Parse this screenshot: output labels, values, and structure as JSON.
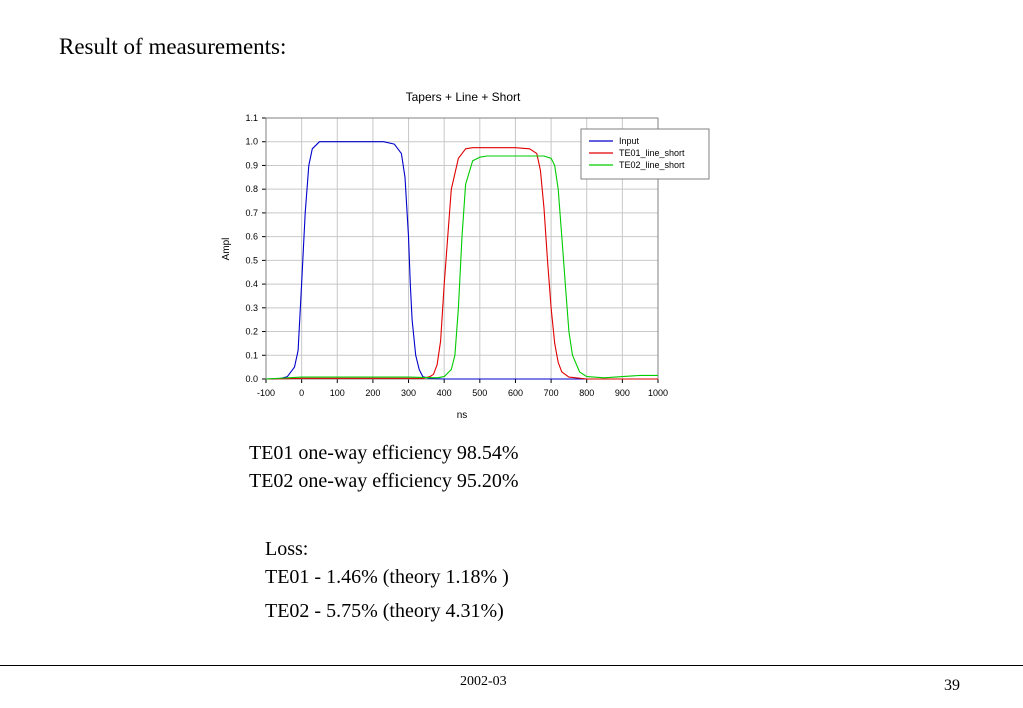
{
  "slide": {
    "title": "Result of measurements:",
    "efficiency": [
      "TE01 one-way efficiency 98.54%",
      "TE02 one-way efficiency 95.20%"
    ],
    "loss": {
      "heading": "Loss:",
      "lines": [
        "TE01 - 1.46% (theory 1.18% )",
        "TE02 - 5.75% (theory 4.31%)"
      ]
    },
    "footer": {
      "date": "2002-03",
      "page": "39"
    }
  },
  "chart_data": {
    "type": "line",
    "title": "Tapers + Line + Short",
    "xlabel": "ns",
    "ylabel": "Ampl",
    "xlim": [
      -100,
      1000
    ],
    "ylim": [
      0,
      1.1
    ],
    "xticks": [
      "-100",
      "0",
      "100",
      "200",
      "300",
      "400",
      "500",
      "600",
      "700",
      "800",
      "900",
      "1000"
    ],
    "yticks": [
      "0.0",
      "0.1",
      "0.2",
      "0.3",
      "0.4",
      "0.5",
      "0.6",
      "0.7",
      "0.8",
      "0.9",
      "1.0",
      "1.1"
    ],
    "grid": true,
    "legend_position": "top-right",
    "series": [
      {
        "name": "Input",
        "color": "#0000cc",
        "x": [
          -100,
          -60,
          -40,
          -20,
          -10,
          0,
          10,
          20,
          30,
          50,
          80,
          150,
          230,
          260,
          280,
          290,
          300,
          305,
          310,
          320,
          330,
          340,
          360,
          400,
          1000
        ],
        "y": [
          0,
          0.002,
          0.01,
          0.05,
          0.12,
          0.4,
          0.7,
          0.9,
          0.97,
          1.0,
          1.0,
          1.0,
          1.0,
          0.99,
          0.95,
          0.85,
          0.6,
          0.4,
          0.25,
          0.1,
          0.04,
          0.01,
          0.002,
          0,
          0
        ]
      },
      {
        "name": "TE01_line_short",
        "color": "#e00000",
        "x": [
          -100,
          0,
          200,
          300,
          340,
          360,
          370,
          380,
          390,
          400,
          420,
          440,
          460,
          480,
          530,
          600,
          640,
          660,
          670,
          680,
          690,
          700,
          710,
          720,
          730,
          750,
          800,
          1000
        ],
        "y": [
          0,
          0.003,
          0.003,
          0.003,
          0.003,
          0.01,
          0.02,
          0.06,
          0.16,
          0.4,
          0.8,
          0.93,
          0.97,
          0.975,
          0.975,
          0.975,
          0.97,
          0.95,
          0.88,
          0.72,
          0.5,
          0.3,
          0.15,
          0.07,
          0.03,
          0.008,
          0,
          0
        ]
      },
      {
        "name": "TE02_line_short",
        "color": "#00cc00",
        "x": [
          -100,
          0,
          100,
          300,
          380,
          400,
          420,
          430,
          440,
          450,
          460,
          480,
          500,
          520,
          600,
          680,
          700,
          710,
          720,
          730,
          740,
          750,
          760,
          780,
          800,
          850,
          900,
          950,
          1000
        ],
        "y": [
          0,
          0.008,
          0.008,
          0.008,
          0.005,
          0.01,
          0.04,
          0.1,
          0.3,
          0.6,
          0.82,
          0.92,
          0.935,
          0.94,
          0.94,
          0.94,
          0.93,
          0.9,
          0.8,
          0.6,
          0.4,
          0.2,
          0.1,
          0.03,
          0.01,
          0.005,
          0.01,
          0.015,
          0.015
        ]
      }
    ]
  }
}
